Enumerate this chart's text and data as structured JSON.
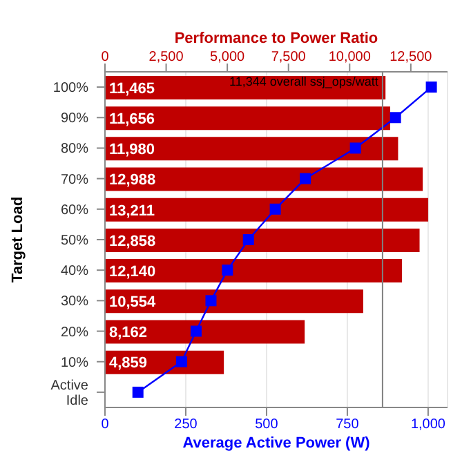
{
  "chart_data": {
    "type": "bar",
    "orientation": "horizontal",
    "xlabel": "Average Active Power (W)",
    "x2label": "Performance to Power Ratio",
    "ylabel": "Target Load",
    "categories": [
      "100%",
      "90%",
      "80%",
      "70%",
      "60%",
      "50%",
      "40%",
      "30%",
      "20%",
      "10%",
      "Active Idle"
    ],
    "series": [
      {
        "axis": "x2",
        "color": "#c00000",
        "values": [
          11465,
          11656,
          11980,
          12988,
          13211,
          12858,
          12140,
          10554,
          8162,
          4859,
          null
        ],
        "value_labels": [
          "11,465",
          "11,656",
          "11,980",
          "12,988",
          "13,211",
          "12,858",
          "12,140",
          "10,554",
          "8,162",
          "4,859",
          null
        ]
      },
      {
        "type": "line",
        "color": "#0000ff",
        "marker": "square",
        "values": [
          1010,
          899,
          775,
          620,
          527,
          444,
          379,
          328,
          282,
          237,
          102
        ]
      }
    ],
    "xlim": [
      0,
      1060
    ],
    "xticks": [
      0,
      250,
      500,
      750,
      {
        "value": 1000,
        "label": "1,000"
      }
    ],
    "x2lim": [
      0,
      14000
    ],
    "x2ticks": [
      0,
      {
        "value": 2500,
        "label": "2,500"
      },
      {
        "value": 5000,
        "label": "5,000"
      },
      {
        "value": 7500,
        "label": "7,500"
      },
      {
        "value": 10000,
        "label": "10,000"
      },
      {
        "value": 12500,
        "label": "12,500"
      }
    ],
    "ref_lines": [
      {
        "axis": "x2",
        "value": 11344,
        "label": "11,344 overall ssj_ops/watt",
        "color": "#808080"
      }
    ],
    "grid": "x",
    "legend": false
  }
}
